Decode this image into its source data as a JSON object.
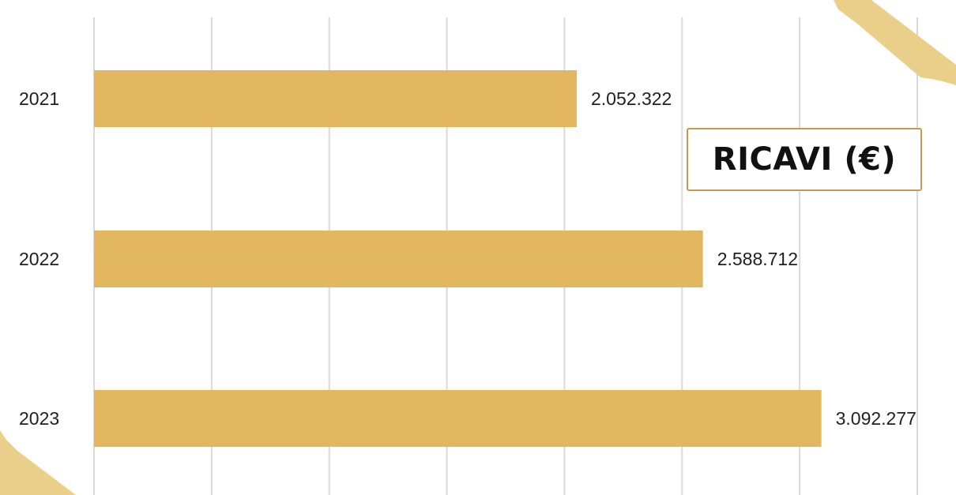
{
  "chart_data": {
    "type": "bar",
    "orientation": "horizontal",
    "title": "RICAVI (€)",
    "categories": [
      "2021",
      "2022",
      "2023"
    ],
    "values": [
      2052322,
      2588712,
      3092277
    ],
    "value_labels": [
      "2.052.322",
      "2.588.712",
      "3.092.277"
    ],
    "xlim": [
      0,
      3500000
    ],
    "grid": true,
    "legend": "none",
    "colors": {
      "bar": "#e2b75f",
      "grid": "#d9d9d9",
      "tape": "#e9cf8a",
      "title_border": "#c59a52"
    }
  }
}
